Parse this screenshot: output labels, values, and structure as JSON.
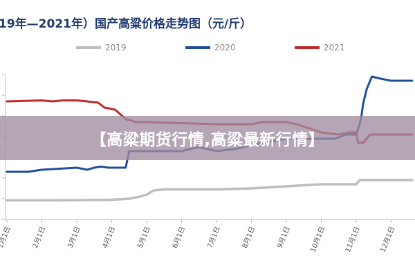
{
  "banner": {
    "text": "【高粱期货行情,高粱最新行情】"
  },
  "chart_data": {
    "type": "line",
    "title": "19年—2021年）国产高粱价格走势图（元/斤）",
    "legend_position": "top",
    "categories": [
      "1月1日",
      "2月1日",
      "3月1日",
      "4月1日",
      "5月1日",
      "6月1日",
      "7月1日",
      "8月1日",
      "9月1日",
      "10月1日",
      "11月1日",
      "12月1日"
    ],
    "ylim": [
      0,
      7
    ],
    "grid": false,
    "series": [
      {
        "name": "2019",
        "color": "#bdbdbd",
        "x": [
          0,
          1,
          2,
          3,
          3.5,
          3.8,
          4.0,
          4.2,
          4.5,
          5,
          5.6,
          6,
          7,
          8,
          9,
          10,
          10.1,
          10.5,
          11,
          11.6
        ],
        "values": [
          0.92,
          0.92,
          0.93,
          0.95,
          1.0,
          1.1,
          1.2,
          1.4,
          1.45,
          1.45,
          1.45,
          1.45,
          1.5,
          1.6,
          1.7,
          1.7,
          1.9,
          1.9,
          1.9,
          1.9
        ]
      },
      {
        "name": "2020",
        "color": "#1f4e9a",
        "x": [
          0,
          0.6,
          1,
          2,
          2.3,
          2.5,
          2.7,
          2.9,
          3.4,
          3.5,
          4,
          5,
          5.5,
          6,
          6.5,
          6.8,
          7,
          8,
          9,
          9.4,
          9.7,
          10,
          10.05,
          10.1,
          10.15,
          10.2,
          10.3,
          10.4,
          10.45,
          10.7,
          11,
          11.3,
          11.6
        ],
        "values": [
          2.3,
          2.3,
          2.4,
          2.5,
          2.4,
          2.5,
          2.55,
          2.5,
          2.5,
          3.3,
          3.3,
          3.3,
          3.5,
          3.3,
          3.4,
          3.5,
          3.6,
          3.9,
          3.9,
          3.9,
          4.1,
          4.1,
          4.35,
          4.6,
          5.0,
          5.6,
          6.3,
          6.7,
          6.9,
          6.8,
          6.7,
          6.7,
          6.7
        ]
      },
      {
        "name": "2021",
        "color": "#c0282c",
        "x": [
          0,
          1,
          1.3,
          1.6,
          2,
          2.3,
          2.6,
          2.8,
          3.1,
          3.3,
          3.4,
          3.5,
          3.7,
          4,
          5,
          6,
          7,
          7.3,
          8,
          8.3,
          9,
          9.5,
          9.8,
          10,
          10.05,
          10.2,
          10.4,
          10.7,
          11,
          11.6
        ],
        "values": [
          5.7,
          5.75,
          5.7,
          5.75,
          5.75,
          5.7,
          5.65,
          5.4,
          5.3,
          5.0,
          4.85,
          4.8,
          4.7,
          4.7,
          4.65,
          4.6,
          4.6,
          4.7,
          4.7,
          4.6,
          4.2,
          4.1,
          4.2,
          4.2,
          3.7,
          3.7,
          4.1,
          4.1,
          4.1,
          4.1
        ]
      }
    ]
  }
}
